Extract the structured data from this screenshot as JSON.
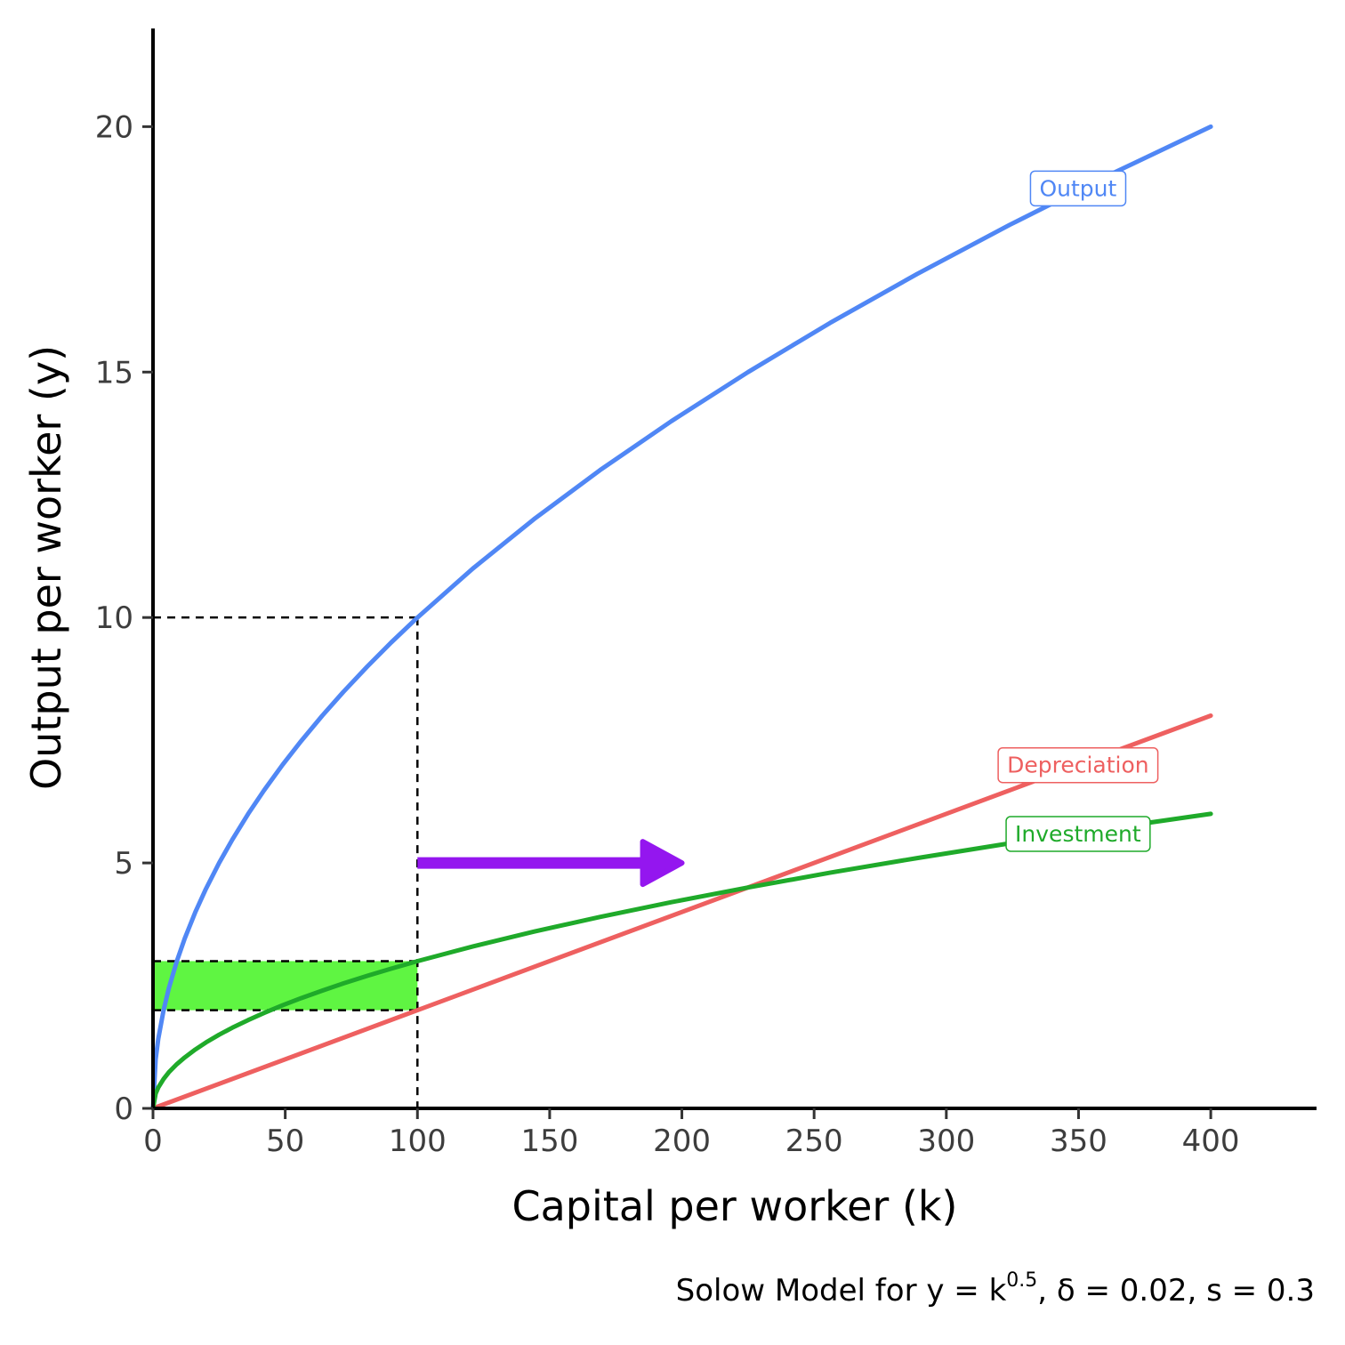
{
  "chart_data": {
    "type": "line",
    "xlabel": "Capital per worker (k)",
    "ylabel": "Output per worker (y)",
    "caption": {
      "prefix": "Solow Model for y = k",
      "exponent": "0.5",
      "suffix": ", δ = 0.02, s = 0.3"
    },
    "xlim": [
      0,
      440
    ],
    "ylim": [
      0,
      22
    ],
    "x_ticks": [
      0,
      50,
      100,
      150,
      200,
      250,
      300,
      350,
      400
    ],
    "y_ticks": [
      0,
      5,
      10,
      15,
      20
    ],
    "grid": false,
    "series": [
      {
        "name": "Output",
        "color": "#5087f5",
        "x": [
          0,
          1,
          2,
          4,
          6,
          9,
          12,
          16,
          20,
          25,
          30,
          36,
          42,
          49,
          56,
          64,
          72,
          81,
          90,
          100,
          121,
          144,
          169,
          196,
          225,
          256,
          289,
          324,
          361,
          400
        ],
        "y": [
          0,
          1,
          1.414,
          2,
          2.449,
          3,
          3.464,
          4,
          4.472,
          5,
          5.477,
          6,
          6.481,
          7,
          7.483,
          8,
          8.485,
          9,
          9.487,
          10,
          11,
          12,
          13,
          14,
          15,
          16,
          17,
          18,
          19,
          20
        ],
        "label_at": [
          335,
          18.75
        ]
      },
      {
        "name": "Depreciation",
        "color": "#ee6060",
        "x": [
          0,
          400
        ],
        "y": [
          0,
          8
        ],
        "label_at": [
          335,
          7.0
        ]
      },
      {
        "name": "Investment",
        "color": "#1faa2a",
        "x": [
          0,
          1,
          2,
          4,
          6,
          9,
          12,
          16,
          20,
          25,
          30,
          36,
          42,
          49,
          56,
          64,
          72,
          81,
          90,
          100,
          121,
          144,
          169,
          196,
          225,
          256,
          289,
          324,
          361,
          400
        ],
        "y": [
          0,
          0.3,
          0.424,
          0.6,
          0.735,
          0.9,
          1.039,
          1.2,
          1.342,
          1.5,
          1.643,
          1.8,
          1.944,
          2.1,
          2.245,
          2.4,
          2.546,
          2.7,
          2.846,
          3.0,
          3.3,
          3.6,
          3.9,
          4.2,
          4.5,
          4.8,
          5.1,
          5.4,
          5.7,
          6.0
        ],
        "label_at": [
          335,
          5.6
        ]
      }
    ],
    "annotations": {
      "guide_lines": {
        "x": 100,
        "y": 10,
        "color": "#000000"
      },
      "shaded_band": {
        "x_range": [
          0,
          100
        ],
        "y_range": [
          2,
          3
        ],
        "color": "#5ff542"
      },
      "arrow": {
        "from": [
          100,
          5
        ],
        "to": [
          200,
          5
        ],
        "color": "#9416ef"
      }
    }
  }
}
